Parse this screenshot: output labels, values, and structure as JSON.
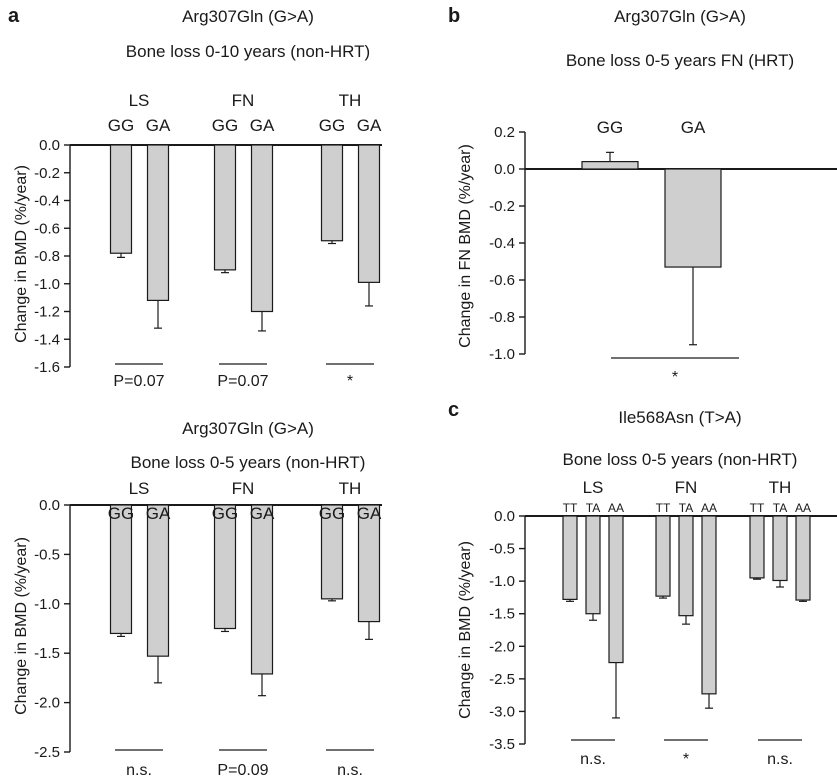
{
  "panel_labels": [
    "a",
    "b",
    "c"
  ],
  "chart_data": [
    {
      "id": "a1",
      "panel": "a",
      "type": "bar",
      "title": "Arg307Gln (G>A)",
      "subtitle": "Bone loss 0-10 years (non-HRT)",
      "ylabel": "Change in BMD (%/year)",
      "ylim": [
        -1.6,
        0.0
      ],
      "yticks": [
        "0.0",
        "-0.2",
        "-0.4",
        "-0.6",
        "-0.8",
        "-1.0",
        "-1.2",
        "-1.4",
        "-1.6"
      ],
      "ytick_values": [
        0.0,
        -0.2,
        -0.4,
        -0.6,
        -0.8,
        -1.0,
        -1.2,
        -1.4,
        -1.6
      ],
      "groups": [
        {
          "name": "LS",
          "categories": [
            "GG",
            "GA"
          ],
          "values": [
            -0.78,
            -1.12
          ],
          "errors": [
            0.03,
            0.2
          ],
          "sig": "P=0.07"
        },
        {
          "name": "FN",
          "categories": [
            "GG",
            "GA"
          ],
          "values": [
            -0.9,
            -1.2
          ],
          "errors": [
            0.02,
            0.14
          ],
          "sig": "P=0.07"
        },
        {
          "name": "TH",
          "categories": [
            "GG",
            "GA"
          ],
          "values": [
            -0.69,
            -0.99
          ],
          "errors": [
            0.02,
            0.17
          ],
          "sig": "*"
        }
      ]
    },
    {
      "id": "a2",
      "panel": "a",
      "type": "bar",
      "title": "Arg307Gln (G>A)",
      "subtitle": "Bone loss 0-5 years (non-HRT)",
      "ylabel": "Change in BMD (%/year)",
      "ylim": [
        -2.5,
        0.0
      ],
      "yticks": [
        "0.0",
        "-0.5",
        "-1.0",
        "-1.5",
        "-2.0",
        "-2.5"
      ],
      "ytick_values": [
        0.0,
        -0.5,
        -1.0,
        -1.5,
        -2.0,
        -2.5
      ],
      "groups": [
        {
          "name": "LS",
          "categories": [
            "GG",
            "GA"
          ],
          "values": [
            -1.3,
            -1.53
          ],
          "errors": [
            0.03,
            0.27
          ],
          "sig": "n.s."
        },
        {
          "name": "FN",
          "categories": [
            "GG",
            "GA"
          ],
          "values": [
            -1.25,
            -1.71
          ],
          "errors": [
            0.03,
            0.22
          ],
          "sig": "P=0.09"
        },
        {
          "name": "TH",
          "categories": [
            "GG",
            "GA"
          ],
          "values": [
            -0.95,
            -1.18
          ],
          "errors": [
            0.02,
            0.18
          ],
          "sig": "n.s."
        }
      ]
    },
    {
      "id": "b",
      "panel": "b",
      "type": "bar",
      "title": "Arg307Gln (G>A)",
      "subtitle": "Bone loss 0-5 years FN  (HRT)",
      "ylabel": "Change in FN BMD (%/year)",
      "ylim": [
        -1.0,
        0.2
      ],
      "yticks": [
        "0.2",
        "0.0",
        "-0.2",
        "-0.4",
        "-0.6",
        "-0.8",
        "-1.0"
      ],
      "ytick_values": [
        0.2,
        0.0,
        -0.2,
        -0.4,
        -0.6,
        -0.8,
        -1.0
      ],
      "groups": [
        {
          "name": "",
          "categories": [
            "GG",
            "GA"
          ],
          "values": [
            0.04,
            -0.53
          ],
          "errors": [
            0.05,
            0.42
          ],
          "sig": "*"
        }
      ]
    },
    {
      "id": "c",
      "panel": "c",
      "type": "bar",
      "title": "Ile568Asn (T>A)",
      "subtitle": "Bone loss 0-5 years (non-HRT)",
      "ylabel": "Change in BMD (%/year)",
      "ylim": [
        -3.5,
        0.0
      ],
      "yticks": [
        "0.0",
        "-0.5",
        "-1.0",
        "-1.5",
        "-2.0",
        "-2.5",
        "-3.0",
        "-3.5"
      ],
      "ytick_values": [
        0.0,
        -0.5,
        -1.0,
        -1.5,
        -2.0,
        -2.5,
        -3.0,
        -3.5
      ],
      "groups": [
        {
          "name": "LS",
          "categories": [
            "TT",
            "TA",
            "AA"
          ],
          "values": [
            -1.28,
            -1.5,
            -2.25
          ],
          "errors": [
            0.03,
            0.1,
            0.85
          ],
          "sig": "n.s."
        },
        {
          "name": "FN",
          "categories": [
            "TT",
            "TA",
            "AA"
          ],
          "values": [
            -1.23,
            -1.53,
            -2.73
          ],
          "errors": [
            0.03,
            0.13,
            0.22
          ],
          "sig": "*"
        },
        {
          "name": "TH",
          "categories": [
            "TT",
            "TA",
            "AA"
          ],
          "values": [
            -0.95,
            -0.99,
            -1.29
          ],
          "errors": [
            0.02,
            0.1,
            0.02
          ],
          "sig": "n.s."
        }
      ]
    }
  ]
}
